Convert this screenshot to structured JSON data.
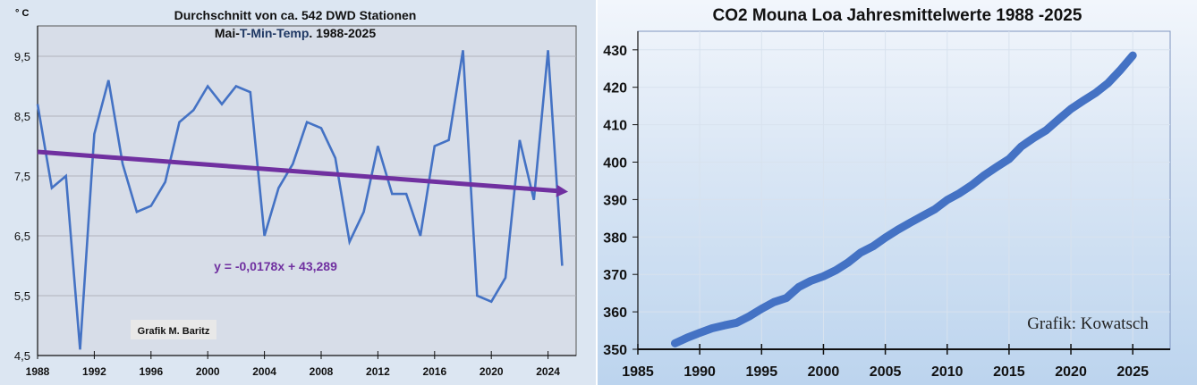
{
  "chart_data": [
    {
      "type": "line",
      "title": "Durchschnitt von ca. 542 DWD Stationen",
      "subtitle_parts": [
        "Mai-",
        "T-Min-Temp",
        ". 1988-2025"
      ],
      "ylabel": "° C",
      "xlabel": "",
      "ylim": [
        4.5,
        10.0
      ],
      "xlim": [
        1988,
        2026
      ],
      "yticks": [
        "9,5",
        "8,5",
        "7,5",
        "6,5",
        "5,5",
        "4,5"
      ],
      "ytick_values": [
        9.5,
        8.5,
        7.5,
        6.5,
        5.5,
        4.5
      ],
      "xticks": [
        "1988",
        "1992",
        "1996",
        "2000",
        "2004",
        "2008",
        "2012",
        "2016",
        "2020",
        "2024"
      ],
      "grid": true,
      "x": [
        1988,
        1989,
        1990,
        1991,
        1992,
        1993,
        1994,
        1995,
        1996,
        1997,
        1998,
        1999,
        2000,
        2001,
        2002,
        2003,
        2004,
        2005,
        2006,
        2007,
        2008,
        2009,
        2010,
        2011,
        2012,
        2013,
        2014,
        2015,
        2016,
        2017,
        2018,
        2019,
        2020,
        2021,
        2022,
        2023,
        2024,
        2025
      ],
      "series": [
        {
          "name": "Mai T-Min",
          "color": "#4472c4",
          "values": [
            8.7,
            7.3,
            7.5,
            4.6,
            8.2,
            9.1,
            7.7,
            6.9,
            7.0,
            7.4,
            8.4,
            8.6,
            9.0,
            8.7,
            9.0,
            8.9,
            6.5,
            7.3,
            7.7,
            8.4,
            8.3,
            7.8,
            6.4,
            6.9,
            8.0,
            7.2,
            7.2,
            6.5,
            8.0,
            8.1,
            9.6,
            5.5,
            5.4,
            5.8,
            8.1,
            7.1,
            9.6,
            6.0
          ]
        }
      ],
      "trend": {
        "equation": "y = -0,0178x + 43,289",
        "slope": -0.0178,
        "intercept": 43.289,
        "color": "#7030a0"
      },
      "annotation": "Grafik M. Baritz"
    },
    {
      "type": "line",
      "title": "CO2 Mouna Loa Jahresmittelwerte 1988 -2025",
      "xlabel": "",
      "ylabel": "",
      "ylim": [
        350,
        435
      ],
      "xlim": [
        1985,
        2028
      ],
      "yticks": [
        "430",
        "420",
        "410",
        "400",
        "390",
        "380",
        "370",
        "360",
        "350"
      ],
      "ytick_values": [
        430,
        420,
        410,
        400,
        390,
        380,
        370,
        360,
        350
      ],
      "xticks": [
        "1985",
        "1990",
        "1995",
        "2000",
        "2005",
        "2010",
        "2015",
        "2020",
        "2025"
      ],
      "xtick_values": [
        1985,
        1990,
        1995,
        2000,
        2005,
        2010,
        2015,
        2020,
        2025
      ],
      "grid": true,
      "x": [
        1988,
        1989,
        1990,
        1991,
        1992,
        1993,
        1994,
        1995,
        1996,
        1997,
        1998,
        1999,
        2000,
        2001,
        2002,
        2003,
        2004,
        2005,
        2006,
        2007,
        2008,
        2009,
        2010,
        2011,
        2012,
        2013,
        2014,
        2015,
        2016,
        2017,
        2018,
        2019,
        2020,
        2021,
        2022,
        2023,
        2024,
        2025
      ],
      "series": [
        {
          "name": "CO2 ppm",
          "color": "#4472c4",
          "values": [
            351.6,
            353.1,
            354.4,
            355.6,
            356.4,
            357.1,
            358.8,
            360.8,
            362.6,
            363.7,
            366.6,
            368.3,
            369.5,
            371.1,
            373.2,
            375.8,
            377.5,
            379.8,
            381.9,
            383.8,
            385.6,
            387.4,
            389.9,
            391.7,
            393.9,
            396.5,
            398.7,
            400.8,
            404.2,
            406.5,
            408.5,
            411.4,
            414.2,
            416.4,
            418.5,
            421.1,
            424.6,
            428.5
          ]
        }
      ],
      "annotation": "Grafik: Kowatsch"
    }
  ]
}
